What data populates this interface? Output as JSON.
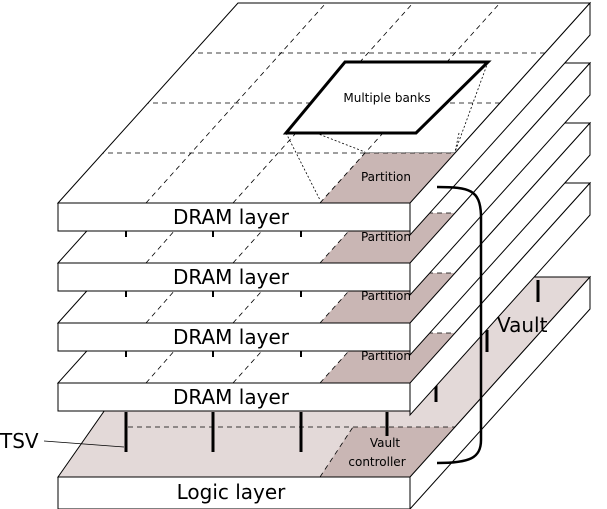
{
  "diagram": {
    "layers": [
      {
        "label": "DRAM layer",
        "partition_label": "Partition"
      },
      {
        "label": "DRAM layer",
        "partition_label": "Partition"
      },
      {
        "label": "DRAM layer",
        "partition_label": "Partition"
      },
      {
        "label": "DRAM layer",
        "partition_label": "Partition"
      }
    ],
    "logic_layer": {
      "label": "Logic layer",
      "vault_controller_line1": "Vault",
      "vault_controller_line2": "controller"
    },
    "banks_label": "Multiple banks",
    "vault_label": "Vault",
    "tsv_label": "TSV",
    "colors": {
      "partition_fill": "#c9b6b4",
      "logic_fill": "#e3d9d8",
      "stroke": "#000000"
    }
  }
}
